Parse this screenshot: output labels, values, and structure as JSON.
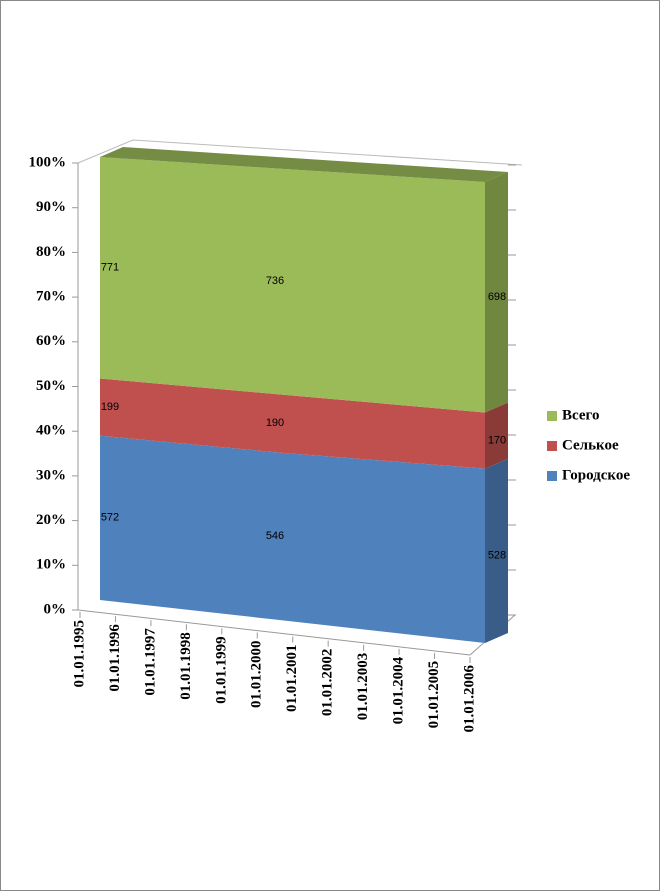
{
  "chart_data": {
    "type": "area3d_stacked100",
    "x": [
      "01.01.1995",
      "01.01.2000",
      "01.01.2006"
    ],
    "xticks": [
      "01.01.1995",
      "01.01.1996",
      "01.01.1997",
      "01.01.1998",
      "01.01.1999",
      "01.01.2000",
      "01.01.2001",
      "01.01.2002",
      "01.01.2003",
      "01.01.2004",
      "01.01.2005",
      "01.01.2006"
    ],
    "series": [
      {
        "name": "Городское",
        "color": "#4f81bd",
        "values": [
          572,
          546,
          528
        ]
      },
      {
        "name": "Селькое",
        "color": "#c0504d",
        "values": [
          199,
          190,
          170
        ]
      },
      {
        "name": "Всего",
        "color": "#9bbb59",
        "values": [
          771,
          736,
          698
        ]
      }
    ],
    "ylim": [
      0,
      100
    ],
    "yticks": [
      {
        "value": 0,
        "label": "0%"
      },
      {
        "value": 10,
        "label": "10%"
      },
      {
        "value": 20,
        "label": "20%"
      },
      {
        "value": 30,
        "label": "30%"
      },
      {
        "value": 40,
        "label": "40%"
      },
      {
        "value": 50,
        "label": "50%"
      },
      {
        "value": 60,
        "label": "60%"
      },
      {
        "value": 70,
        "label": "70%"
      },
      {
        "value": 80,
        "label": "80%"
      },
      {
        "value": 90,
        "label": "90%"
      },
      {
        "value": 100,
        "label": "100%"
      }
    ],
    "legend": "right"
  }
}
